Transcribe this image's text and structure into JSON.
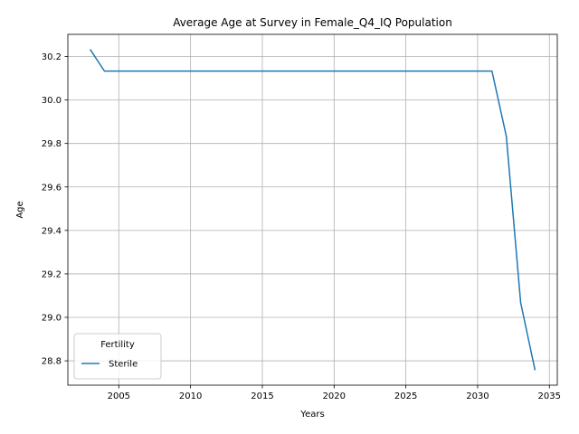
{
  "chart_data": {
    "type": "line",
    "title": "Average Age at Survey in Female_Q4_IQ Population",
    "xlabel": "Years",
    "ylabel": "Age",
    "xlim": [
      2001.45,
      2035.55
    ],
    "ylim": [
      28.688,
      30.302
    ],
    "xticks": [
      2005,
      2010,
      2015,
      2020,
      2025,
      2030,
      2035
    ],
    "yticks": [
      28.8,
      29.0,
      29.2,
      29.4,
      29.6,
      29.8,
      30.0,
      30.2
    ],
    "xtick_labels": [
      "2005",
      "2010",
      "2015",
      "2020",
      "2025",
      "2030",
      "2035"
    ],
    "ytick_labels": [
      "28.8",
      "29.0",
      "29.2",
      "29.4",
      "29.6",
      "29.8",
      "30.0",
      "30.2"
    ],
    "grid": true,
    "legend": {
      "title": "Fertility",
      "placement": "lower-left"
    },
    "series": [
      {
        "name": "Sterile",
        "color": "#1f77b4",
        "x": [
          2003,
          2004,
          2005,
          2006,
          2007,
          2008,
          2009,
          2010,
          2011,
          2012,
          2013,
          2014,
          2015,
          2016,
          2017,
          2018,
          2019,
          2020,
          2021,
          2022,
          2023,
          2024,
          2025,
          2026,
          2027,
          2028,
          2029,
          2030,
          2031,
          2032,
          2033,
          2034
        ],
        "y": [
          30.233,
          30.133,
          30.133,
          30.133,
          30.133,
          30.133,
          30.133,
          30.133,
          30.133,
          30.133,
          30.133,
          30.133,
          30.133,
          30.133,
          30.133,
          30.133,
          30.133,
          30.133,
          30.133,
          30.133,
          30.133,
          30.133,
          30.133,
          30.133,
          30.133,
          30.133,
          30.133,
          30.133,
          30.133,
          29.833,
          29.067,
          28.757
        ]
      }
    ]
  }
}
